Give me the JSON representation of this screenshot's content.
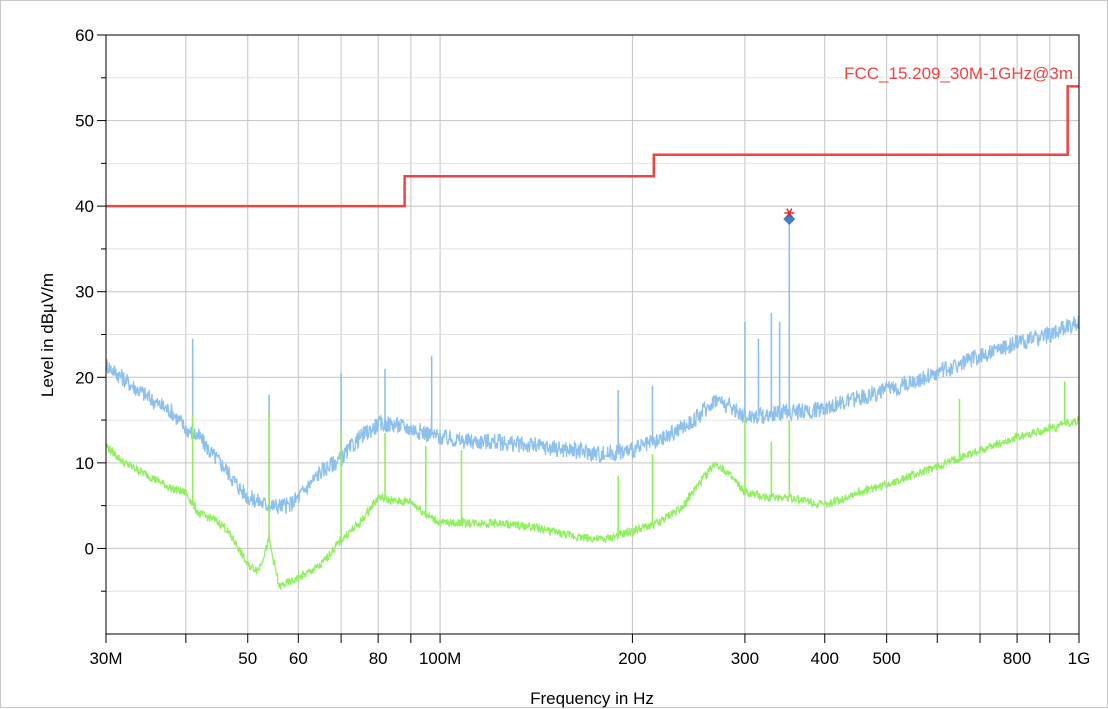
{
  "chart_data": {
    "type": "line",
    "title": "",
    "xlabel": "Frequency in Hz",
    "ylabel": "Level in dBµV/m",
    "x_scale": "log",
    "xlim": [
      30000000,
      1000000000
    ],
    "ylim": [
      -10,
      60
    ],
    "grid": true,
    "x_ticks": [
      {
        "value": 30000000,
        "label": "30M"
      },
      {
        "value": 40000000,
        "label": ""
      },
      {
        "value": 50000000,
        "label": "50"
      },
      {
        "value": 60000000,
        "label": "60"
      },
      {
        "value": 70000000,
        "label": ""
      },
      {
        "value": 80000000,
        "label": "80"
      },
      {
        "value": 90000000,
        "label": ""
      },
      {
        "value": 100000000,
        "label": "100M"
      },
      {
        "value": 200000000,
        "label": "200"
      },
      {
        "value": 300000000,
        "label": "300"
      },
      {
        "value": 400000000,
        "label": "400"
      },
      {
        "value": 500000000,
        "label": "500"
      },
      {
        "value": 600000000,
        "label": ""
      },
      {
        "value": 700000000,
        "label": ""
      },
      {
        "value": 800000000,
        "label": "800"
      },
      {
        "value": 900000000,
        "label": ""
      },
      {
        "value": 1000000000,
        "label": "1G"
      }
    ],
    "y_ticks": [
      {
        "value": 0,
        "label": "0"
      },
      {
        "value": 10,
        "label": "10"
      },
      {
        "value": 20,
        "label": "20"
      },
      {
        "value": 30,
        "label": "30"
      },
      {
        "value": 40,
        "label": "40"
      },
      {
        "value": 50,
        "label": "50"
      },
      {
        "value": 60,
        "label": "60"
      }
    ],
    "series": [
      {
        "name": "FCC_15.209_30M-1GHz@3m",
        "role": "limit",
        "color": "#ee4444",
        "x": [
          30000000,
          88000000,
          88000000,
          216000000,
          216000000,
          960000000,
          960000000,
          1000000000
        ],
        "y": [
          40,
          40,
          43.5,
          43.5,
          46,
          46,
          54,
          54
        ]
      },
      {
        "name": "",
        "role": "peak",
        "color": "#8ec0ec",
        "x": [
          30000000,
          33000000,
          36000000,
          38000000,
          40000000,
          42000000,
          44000000,
          46000000,
          48000000,
          50000000,
          52000000,
          54000000,
          56000000,
          58000000,
          60000000,
          65000000,
          70000000,
          75000000,
          80000000,
          85000000,
          90000000,
          95000000,
          100000000,
          110000000,
          120000000,
          140000000,
          160000000,
          180000000,
          200000000,
          220000000,
          250000000,
          270000000,
          300000000,
          320000000,
          350000000,
          380000000,
          400000000,
          450000000,
          500000000,
          600000000,
          700000000,
          800000000,
          900000000,
          1000000000
        ],
        "y": [
          21.5,
          19,
          17,
          16,
          14,
          13,
          11,
          9.5,
          7.5,
          6,
          5.5,
          5,
          5,
          5,
          6,
          9,
          10.5,
          13,
          14.5,
          14.5,
          14,
          13.5,
          13,
          12.5,
          12.5,
          12,
          11.5,
          11,
          11.5,
          12.5,
          15,
          17.5,
          15.5,
          15.5,
          16,
          16,
          16.5,
          17.5,
          18.5,
          20.5,
          22.5,
          24,
          25,
          26.5
        ],
        "spikes": [
          {
            "x": 41000000,
            "y": 24.5
          },
          {
            "x": 54000000,
            "y": 18
          },
          {
            "x": 70000000,
            "y": 20.5
          },
          {
            "x": 82000000,
            "y": 21
          },
          {
            "x": 97000000,
            "y": 22.5
          },
          {
            "x": 190000000,
            "y": 18.5
          },
          {
            "x": 215000000,
            "y": 19
          },
          {
            "x": 300000000,
            "y": 26.5
          },
          {
            "x": 315000000,
            "y": 24.5
          },
          {
            "x": 330000000,
            "y": 27.5
          },
          {
            "x": 340000000,
            "y": 26.5
          },
          {
            "x": 352000000,
            "y": 38.5
          }
        ]
      },
      {
        "name": "",
        "role": "average",
        "color": "#90f060",
        "x": [
          30000000,
          32000000,
          34000000,
          36000000,
          38000000,
          40000000,
          42000000,
          44000000,
          46000000,
          48000000,
          50000000,
          52000000,
          54000000,
          56000000,
          58000000,
          60000000,
          65000000,
          70000000,
          75000000,
          80000000,
          85000000,
          90000000,
          95000000,
          100000000,
          120000000,
          140000000,
          160000000,
          180000000,
          200000000,
          220000000,
          240000000,
          260000000,
          270000000,
          280000000,
          300000000,
          320000000,
          350000000,
          380000000,
          400000000,
          450000000,
          500000000,
          600000000,
          700000000,
          800000000,
          900000000,
          1000000000
        ],
        "y": [
          12,
          10,
          9,
          8,
          7,
          6.5,
          4,
          3.5,
          2.5,
          0.5,
          -2,
          -2.5,
          1,
          -4.5,
          -4,
          -3.5,
          -2,
          1,
          3,
          6,
          5.5,
          5.5,
          4,
          3,
          3,
          2.5,
          1.5,
          1,
          2,
          3,
          5,
          8.5,
          10,
          9,
          6.5,
          6,
          6,
          5.5,
          5,
          6.5,
          7.5,
          9.5,
          11.5,
          13,
          14,
          15
        ],
        "spikes": [
          {
            "x": 41000000,
            "y": 15.5
          },
          {
            "x": 54000000,
            "y": 16
          },
          {
            "x": 70000000,
            "y": 14
          },
          {
            "x": 82000000,
            "y": 13.5
          },
          {
            "x": 95000000,
            "y": 12
          },
          {
            "x": 108000000,
            "y": 11.5
          },
          {
            "x": 190000000,
            "y": 8.5
          },
          {
            "x": 215000000,
            "y": 11
          },
          {
            "x": 300000000,
            "y": 15
          },
          {
            "x": 330000000,
            "y": 12.5
          },
          {
            "x": 352000000,
            "y": 15
          },
          {
            "x": 650000000,
            "y": 17.5
          },
          {
            "x": 950000000,
            "y": 19.5
          }
        ]
      }
    ],
    "markers": [
      {
        "x": 352000000,
        "y": 38.5,
        "symbol": "diamond",
        "color": "#3a7fd0"
      },
      {
        "x": 352000000,
        "y": 39.2,
        "symbol": "star",
        "color": "#dd2222"
      }
    ]
  }
}
